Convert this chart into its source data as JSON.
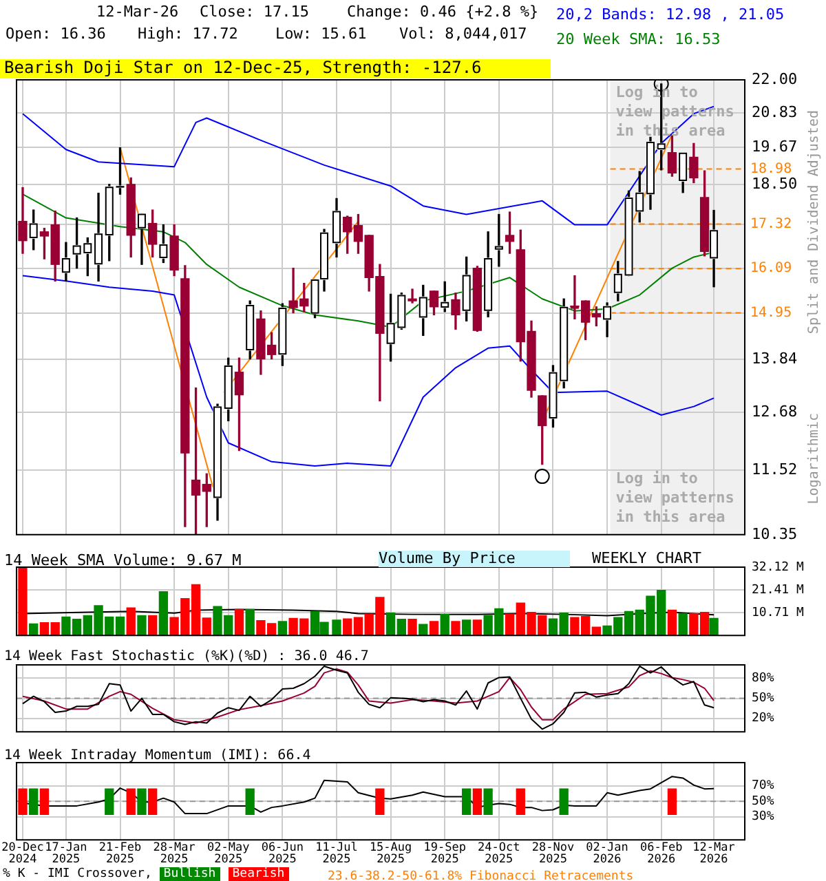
{
  "chart_data": [
    {
      "type": "candlestick",
      "title": "Bearish Doji Star on 12-Dec-25, Strength: -127.6",
      "ylabel": "Split and Dividend Adjusted",
      "log": true,
      "grid": true,
      "tick_labels": "y",
      "legend": "top right",
      "xlim": [
        "2024-12-16",
        "2026-04-01"
      ],
      "xticks": [
        {
          "value": "2024-12-20",
          "label": null
        },
        {
          "value": "2025-01-17",
          "label": null
        },
        {
          "value": "2025-02-21",
          "label": null
        },
        {
          "value": "2025-03-28",
          "label": null
        },
        {
          "value": "2025-05-02",
          "label": null
        },
        {
          "value": "2025-06-06",
          "label": null
        },
        {
          "value": "2025-07-11",
          "label": null
        },
        {
          "value": "2025-08-15",
          "label": null
        },
        {
          "value": "2025-09-19",
          "label": null
        },
        {
          "value": "2025-10-24",
          "label": null
        },
        {
          "value": "2025-11-28",
          "label": null
        },
        {
          "value": "2026-01-02",
          "label": null
        },
        {
          "value": "2026-02-06",
          "label": null
        },
        {
          "value": "2026-03-12",
          "label": null
        }
      ],
      "ylim": [
        10.35,
        22.0
      ],
      "yticks": [
        {
          "value": 22.0,
          "label": "22.00"
        },
        20.83,
        19.67,
        {
          "value": 18.5,
          "label": "18.50"
        },
        {
          "value": 17.32,
          "label": null
        },
        {
          "value": 16.09,
          "label": null
        },
        {
          "value": 14.95,
          "label": null
        },
        13.84,
        12.68,
        11.52,
        10.35
      ],
      "x": [
        "2024-12-20",
        "2024-12-27",
        "2025-01-03",
        "2025-01-10",
        "2025-01-17",
        "2025-01-24",
        "2025-01-31",
        "2025-02-07",
        "2025-02-14",
        "2025-02-21",
        "2025-02-28",
        "2025-03-07",
        "2025-03-14",
        "2025-03-21",
        "2025-03-28",
        "2025-04-04",
        "2025-04-11",
        "2025-04-18",
        "2025-04-25",
        "2025-05-02",
        "2025-05-09",
        "2025-05-16",
        "2025-05-23",
        "2025-05-30",
        "2025-06-06",
        "2025-06-13",
        "2025-06-20",
        "2025-06-27",
        "2025-07-03",
        "2025-07-11",
        "2025-07-18",
        "2025-07-25",
        "2025-08-01",
        "2025-08-08",
        "2025-08-15",
        "2025-08-22",
        "2025-08-29",
        "2025-09-05",
        "2025-09-12",
        "2025-09-19",
        "2025-09-26",
        "2025-10-03",
        "2025-10-10",
        "2025-10-17",
        "2025-10-24",
        "2025-10-31",
        "2025-11-07",
        "2025-11-14",
        "2025-11-21",
        "2025-11-28",
        "2025-12-05",
        "2025-12-12",
        "2025-12-19",
        "2025-12-26",
        "2026-01-02",
        "2026-01-09",
        "2026-01-16",
        "2026-01-23",
        "2026-01-30",
        "2026-02-06",
        "2026-02-13",
        "2026-02-20",
        "2026-02-27",
        "2026-03-06",
        "2026-03-12"
      ],
      "ohlc": [
        [
          17.4,
          18.4,
          16.5,
          16.85
        ],
        [
          16.92,
          17.73,
          16.6,
          17.34
        ],
        [
          17.1,
          17.2,
          16.35,
          16.98
        ],
        [
          17.3,
          17.7,
          15.76,
          16.2
        ],
        [
          15.98,
          16.8,
          15.76,
          16.37
        ],
        [
          16.47,
          17.5,
          16.1,
          16.72
        ],
        [
          16.5,
          16.93,
          15.9,
          16.78
        ],
        [
          16.2,
          18.23,
          15.76,
          17.05
        ],
        [
          17.0,
          18.5,
          16.3,
          18.43
        ],
        [
          18.4,
          19.66,
          18.2,
          18.45
        ],
        [
          18.5,
          18.7,
          16.4,
          17.0
        ],
        [
          17.2,
          17.62,
          16.2,
          17.62
        ],
        [
          17.34,
          17.73,
          16.4,
          16.75
        ],
        [
          16.37,
          17.3,
          16.25,
          16.75
        ],
        [
          16.98,
          17.3,
          15.9,
          16.05
        ],
        [
          15.82,
          16.17,
          10.49,
          11.85
        ],
        [
          11.33,
          13.2,
          10.35,
          11.05
        ],
        [
          11.25,
          11.45,
          10.49,
          11.12
        ],
        [
          11.0,
          12.85,
          10.6,
          12.8
        ],
        [
          12.75,
          13.87,
          12.5,
          13.7
        ],
        [
          13.55,
          13.87,
          11.9,
          13.05
        ],
        [
          14.05,
          15.25,
          13.85,
          15.15
        ],
        [
          14.8,
          15.0,
          13.5,
          13.85
        ],
        [
          14.17,
          14.47,
          13.85,
          13.95
        ],
        [
          13.95,
          15.18,
          13.7,
          15.08
        ],
        [
          15.25,
          16.1,
          14.95,
          15.08
        ],
        [
          15.3,
          15.7,
          14.98,
          15.12
        ],
        [
          14.93,
          15.8,
          14.83,
          15.8
        ],
        [
          15.8,
          17.17,
          15.5,
          17.08
        ],
        [
          16.78,
          18.07,
          16.4,
          17.7
        ],
        [
          17.52,
          17.55,
          16.5,
          17.1
        ],
        [
          17.28,
          17.6,
          16.5,
          16.83
        ],
        [
          17.0,
          17.0,
          15.5,
          15.85
        ],
        [
          15.88,
          16.2,
          12.92,
          14.45
        ],
        [
          14.2,
          15.42,
          13.8,
          14.7
        ],
        [
          14.58,
          15.45,
          14.55,
          15.4
        ],
        [
          15.3,
          15.55,
          15.2,
          15.25
        ],
        [
          14.83,
          15.65,
          14.4,
          15.35
        ],
        [
          15.5,
          15.5,
          14.9,
          15.1
        ],
        [
          15.08,
          15.74,
          14.98,
          15.22
        ],
        [
          15.28,
          15.45,
          14.55,
          14.9
        ],
        [
          15.0,
          16.4,
          14.75,
          15.92
        ],
        [
          16.1,
          16.15,
          14.5,
          14.52
        ],
        [
          15.0,
          17.1,
          14.85,
          16.37
        ],
        [
          16.6,
          17.6,
          16.15,
          16.7
        ],
        [
          17.0,
          17.67,
          16.5,
          16.83
        ],
        [
          16.6,
          17.15,
          13.8,
          14.25
        ],
        [
          14.5,
          14.75,
          13.0,
          13.15
        ],
        [
          13.03,
          13.03,
          11.63,
          12.4
        ],
        [
          12.55,
          13.7,
          12.37,
          13.55
        ],
        [
          13.35,
          15.3,
          13.2,
          15.1
        ],
        [
          15.12,
          15.9,
          14.8,
          15.1
        ],
        [
          15.25,
          15.25,
          14.3,
          14.72
        ],
        [
          14.93,
          15.1,
          14.63,
          14.85
        ],
        [
          14.78,
          15.2,
          14.37,
          15.12
        ],
        [
          15.45,
          16.28,
          15.25,
          15.95
        ],
        [
          15.9,
          18.3,
          15.9,
          18.1
        ],
        [
          17.68,
          18.9,
          17.38,
          18.25
        ],
        [
          18.2,
          20.0,
          17.75,
          19.85
        ],
        [
          19.6,
          21.85,
          18.95,
          19.8
        ],
        [
          19.5,
          20.05,
          18.75,
          18.85
        ],
        [
          18.6,
          19.5,
          18.25,
          19.5
        ],
        [
          19.35,
          19.8,
          18.55,
          18.7
        ],
        [
          18.1,
          18.92,
          16.43,
          16.55
        ],
        [
          16.36,
          17.72,
          15.61,
          17.15
        ]
      ],
      "colors": [
        "#990033",
        "#ffffff",
        "#990033",
        "#990033",
        "#ffffff",
        "#ffffff",
        "#ffffff",
        "#ffffff",
        "#ffffff",
        "#ffffff",
        "#990033",
        "#ffffff",
        "#990033",
        "#ffffff",
        "#990033",
        "#990033",
        "#990033",
        "#990033",
        "#ffffff",
        "#ffffff",
        "#990033",
        "#ffffff",
        "#990033",
        "#990033",
        "#ffffff",
        "#990033",
        "#990033",
        "#ffffff",
        "#ffffff",
        "#ffffff",
        "#990033",
        "#990033",
        "#990033",
        "#990033",
        "#ffffff",
        "#ffffff",
        "#990033",
        "#ffffff",
        "#990033",
        "#ffffff",
        "#990033",
        "#ffffff",
        "#990033",
        "#ffffff",
        "#ffffff",
        "#990033",
        "#990033",
        "#990033",
        "#990033",
        "#ffffff",
        "#ffffff",
        "#990033",
        "#990033",
        "#990033",
        "#ffffff",
        "#ffffff",
        "#ffffff",
        "#ffffff",
        "#ffffff",
        "#ffffff",
        "#990033",
        "#ffffff",
        "#990033",
        "#990033",
        "#ffffff"
      ],
      "series": [
        {
          "type": "line",
          "name": "20,2 Bands: 12.98 , 21.05",
          "color": "#0000ff",
          "x": [
            "2024-12-20",
            "2025-01-17",
            "2025-02-07",
            "2025-03-28",
            "2025-04-11",
            "2025-04-18",
            "2025-05-23",
            "2025-07-03",
            "2025-08-15",
            "2025-09-05",
            "2025-10-03",
            "2025-11-21",
            "2025-12-12",
            "2026-01-02",
            "2026-01-16",
            "2026-02-06",
            "2026-02-27",
            "2026-03-12"
          ],
          "values": [
            20.8,
            19.6,
            19.2,
            19.05,
            20.5,
            20.65,
            19.9,
            19.1,
            18.45,
            17.85,
            17.6,
            18.0,
            17.3,
            17.3,
            18.26,
            19.8,
            20.8,
            21.05
          ]
        },
        {
          "type": "line",
          "color": "#0000ff",
          "x": [
            "2024-12-20",
            "2025-01-17",
            "2025-02-14",
            "2025-03-14",
            "2025-03-28",
            "2025-04-18",
            "2025-05-02",
            "2025-05-30",
            "2025-06-27",
            "2025-07-18",
            "2025-08-15",
            "2025-09-05",
            "2025-09-26",
            "2025-10-17",
            "2025-10-31",
            "2025-11-14",
            "2025-11-28",
            "2026-01-02",
            "2026-02-06",
            "2026-02-27",
            "2026-03-12"
          ],
          "values": [
            15.9,
            15.76,
            15.6,
            15.5,
            15.4,
            13.0,
            12.05,
            11.68,
            11.6,
            11.65,
            11.6,
            13.0,
            13.65,
            14.1,
            14.15,
            13.6,
            13.1,
            13.13,
            12.62,
            12.8,
            12.98
          ]
        },
        {
          "type": "line",
          "name": "20 Week SMA: 16.53",
          "color": "#008000",
          "x": [
            "2024-12-20",
            "2025-01-17",
            "2025-02-21",
            "2025-03-21",
            "2025-04-04",
            "2025-04-18",
            "2025-05-09",
            "2025-06-06",
            "2025-06-27",
            "2025-07-25",
            "2025-08-15",
            "2025-09-05",
            "2025-10-03",
            "2025-10-31",
            "2025-11-21",
            "2025-12-12",
            "2026-01-02",
            "2026-01-23",
            "2026-02-13",
            "2026-02-27",
            "2026-03-12"
          ],
          "values": [
            18.2,
            17.5,
            17.25,
            17.1,
            16.8,
            16.2,
            15.6,
            15.13,
            14.9,
            14.75,
            14.6,
            15.25,
            15.5,
            15.85,
            15.3,
            15.0,
            15.05,
            15.4,
            16.1,
            16.4,
            16.53
          ]
        },
        {
          "type": "line",
          "color": "#ff8000",
          "x": [
            "2025-02-21",
            "2025-04-22"
          ],
          "values": [
            19.66,
            11.2
          ]
        },
        {
          "type": "line",
          "color": "#ff8000",
          "x": [
            "2025-04-29",
            "2025-07-25"
          ],
          "values": [
            13.1,
            17.4
          ]
        },
        {
          "type": "line",
          "color": "#ff8000",
          "x": [
            "2025-11-24",
            "2026-02-13"
          ],
          "values": [
            12.7,
            20.1
          ]
        },
        {
          "type": "scatter",
          "marker": "circle",
          "color": "#000000",
          "x": [
            "2025-11-21",
            "2026-02-06"
          ],
          "values": [
            11.4,
            21.85
          ]
        }
      ],
      "ref_lines": [
        {
          "axis": "y",
          "value": 18.98,
          "label": "18.98",
          "color": "#ff8000",
          "line_style": "dashed"
        },
        {
          "axis": "y",
          "value": 17.32,
          "label": "17.32",
          "color": "#ff8000",
          "line_style": "dashed"
        },
        {
          "axis": "y",
          "value": 16.09,
          "label": "16.09",
          "color": "#ff8000",
          "line_style": "dashed"
        },
        {
          "axis": "y",
          "value": 14.95,
          "label": "14.95",
          "color": "#ff8000",
          "line_style": "dashed"
        }
      ],
      "bands": [
        {
          "axis": "x",
          "from": "2026-01-04",
          "to": "2026-04-01",
          "label": "Log in to view patterns in this area",
          "color": "#f0f0f0"
        }
      ],
      "annotations": [
        "12-Mar-26",
        "Close: 17.15",
        "Change: 0.46 {+2.8 %}",
        "Open: 16.36",
        "High: 17.72",
        "Low: 15.61",
        "Vol: 8,044,017",
        "Volume By Price",
        "WEEKLY CHART",
        "Log in to view patterns in this area",
        "Logarithmic"
      ]
    },
    {
      "type": "bar",
      "title": "14 Week SMA Volume: 9.67 M",
      "grid": true,
      "tick_labels": "y",
      "xlim": [
        "2024-12-16",
        "2026-04-01"
      ],
      "xticks": [
        {
          "value": "2024-12-20",
          "label": null
        },
        {
          "value": "2025-01-17",
          "label": null
        },
        {
          "value": "2025-02-21",
          "label": null
        },
        {
          "value": "2025-03-28",
          "label": null
        },
        {
          "value": "2025-05-02",
          "label": null
        },
        {
          "value": "2025-06-06",
          "label": null
        },
        {
          "value": "2025-07-11",
          "label": null
        },
        {
          "value": "2025-08-15",
          "label": null
        },
        {
          "value": "2025-09-19",
          "label": null
        },
        {
          "value": "2025-10-24",
          "label": null
        },
        {
          "value": "2025-11-28",
          "label": null
        },
        {
          "value": "2026-01-02",
          "label": null
        },
        {
          "value": "2026-02-06",
          "label": null
        },
        {
          "value": "2026-03-12",
          "label": null
        }
      ],
      "ylim": [
        0,
        32.12
      ],
      "yticks": [
        {
          "value": 10.71,
          "label": "10.71 M"
        },
        {
          "value": 21.41,
          "label": "21.41 M"
        },
        {
          "value": 32.12,
          "label": "32.12 M"
        }
      ],
      "x": [
        "2024-12-20",
        "2024-12-27",
        "2025-01-03",
        "2025-01-10",
        "2025-01-17",
        "2025-01-24",
        "2025-01-31",
        "2025-02-07",
        "2025-02-14",
        "2025-02-21",
        "2025-02-28",
        "2025-03-07",
        "2025-03-14",
        "2025-03-21",
        "2025-03-28",
        "2025-04-04",
        "2025-04-11",
        "2025-04-18",
        "2025-04-25",
        "2025-05-02",
        "2025-05-09",
        "2025-05-16",
        "2025-05-23",
        "2025-05-30",
        "2025-06-06",
        "2025-06-13",
        "2025-06-20",
        "2025-06-27",
        "2025-07-03",
        "2025-07-11",
        "2025-07-18",
        "2025-07-25",
        "2025-08-01",
        "2025-08-08",
        "2025-08-15",
        "2025-08-22",
        "2025-08-29",
        "2025-09-05",
        "2025-09-12",
        "2025-09-19",
        "2025-09-26",
        "2025-10-03",
        "2025-10-10",
        "2025-10-17",
        "2025-10-24",
        "2025-10-31",
        "2025-11-07",
        "2025-11-14",
        "2025-11-21",
        "2025-11-28",
        "2025-12-05",
        "2025-12-12",
        "2025-12-19",
        "2025-12-26",
        "2026-01-02",
        "2026-01-09",
        "2026-01-16",
        "2026-01-23",
        "2026-01-30",
        "2026-02-06",
        "2026-02-13",
        "2026-02-20",
        "2026-02-27",
        "2026-03-06",
        "2026-03-12"
      ],
      "series": [
        {
          "values": [
            32.12,
            5.4,
            6.0,
            6.0,
            8.7,
            7.6,
            9.3,
            14.0,
            8.7,
            8.7,
            13.0,
            9.3,
            9.3,
            20.6,
            8.4,
            17.3,
            23.9,
            8.2,
            13.6,
            9.3,
            12.2,
            12.2,
            7.0,
            5.6,
            6.6,
            8.0,
            7.8,
            11.3,
            6.2,
            7.2,
            7.8,
            8.4,
            9.9,
            17.9,
            10.5,
            7.6,
            7.6,
            5.2,
            6.6,
            9.9,
            6.6,
            7.2,
            7.2,
            9.3,
            12.6,
            9.9,
            15.2,
            10.9,
            9.3,
            7.8,
            10.5,
            8.4,
            8.9,
            3.9,
            4.5,
            8.4,
            11.3,
            11.9,
            18.5,
            21.2,
            11.9,
            10.3,
            10.3,
            10.9,
            8.04
          ],
          "colors": [
            "#ff0000",
            "#008800",
            "#ff0000",
            "#ff0000",
            "#008800",
            "#008800",
            "#008800",
            "#008800",
            "#008800",
            "#008800",
            "#ff0000",
            "#008800",
            "#ff0000",
            "#008800",
            "#ff0000",
            "#ff0000",
            "#ff0000",
            "#ff0000",
            "#008800",
            "#008800",
            "#ff0000",
            "#008800",
            "#ff0000",
            "#ff0000",
            "#008800",
            "#ff0000",
            "#ff0000",
            "#008800",
            "#008800",
            "#008800",
            "#ff0000",
            "#ff0000",
            "#ff0000",
            "#ff0000",
            "#008800",
            "#008800",
            "#ff0000",
            "#008800",
            "#ff0000",
            "#008800",
            "#ff0000",
            "#008800",
            "#ff0000",
            "#008800",
            "#008800",
            "#ff0000",
            "#ff0000",
            "#ff0000",
            "#ff0000",
            "#008800",
            "#008800",
            "#ff0000",
            "#ff0000",
            "#ff0000",
            "#008800",
            "#008800",
            "#008800",
            "#008800",
            "#008800",
            "#008800",
            "#ff0000",
            "#008800",
            "#ff0000",
            "#ff0000",
            "#008800"
          ]
        },
        {
          "type": "line",
          "color": "#000000",
          "x": [
            "2024-12-20",
            "2025-01-31",
            "2025-02-28",
            "2025-03-28",
            "2025-04-11",
            "2025-05-09",
            "2025-06-13",
            "2025-07-11",
            "2025-07-25",
            "2025-08-29",
            "2025-10-10",
            "2025-11-07",
            "2025-12-05",
            "2026-01-02",
            "2026-01-30",
            "2026-02-13",
            "2026-03-12"
          ],
          "values": [
            10.3,
            10.9,
            11.3,
            10.5,
            11.9,
            12.2,
            11.9,
            11.3,
            10.3,
            9.9,
            9.9,
            10.3,
            9.9,
            9.3,
            10.5,
            10.9,
            9.67
          ]
        }
      ]
    },
    {
      "type": "line",
      "title": "14 Week Fast Stochastic (%K)(%D) : 36.0 46.7",
      "grid": true,
      "tick_labels": "y",
      "xlim": [
        "2024-12-16",
        "2026-04-01"
      ],
      "xticks": [
        {
          "value": "2024-12-20",
          "label": null
        },
        {
          "value": "2025-01-17",
          "label": null
        },
        {
          "value": "2025-02-21",
          "label": null
        },
        {
          "value": "2025-03-28",
          "label": null
        },
        {
          "value": "2025-05-02",
          "label": null
        },
        {
          "value": "2025-06-06",
          "label": null
        },
        {
          "value": "2025-07-11",
          "label": null
        },
        {
          "value": "2025-08-15",
          "label": null
        },
        {
          "value": "2025-09-19",
          "label": null
        },
        {
          "value": "2025-10-24",
          "label": null
        },
        {
          "value": "2025-11-28",
          "label": null
        },
        {
          "value": "2026-01-02",
          "label": null
        },
        {
          "value": "2026-02-06",
          "label": null
        },
        {
          "value": "2026-03-12",
          "label": null
        }
      ],
      "ylim": [
        0,
        100
      ],
      "yticks": [
        {
          "value": 20,
          "label": "20%"
        },
        {
          "value": 50,
          "label": "50%"
        },
        {
          "value": 80,
          "label": "80%"
        }
      ],
      "ref_lines": [
        {
          "axis": "y",
          "value": 50,
          "color": "#999999",
          "line_style": "dashed"
        }
      ],
      "series": [
        {
          "color": "#000000",
          "x": [
            "2024-12-20",
            "2024-12-27",
            "2025-01-03",
            "2025-01-10",
            "2025-01-17",
            "2025-01-24",
            "2025-01-31",
            "2025-02-07",
            "2025-02-14",
            "2025-02-21",
            "2025-02-28",
            "2025-03-07",
            "2025-03-14",
            "2025-03-21",
            "2025-03-28",
            "2025-04-04",
            "2025-04-11",
            "2025-04-18",
            "2025-04-25",
            "2025-05-02",
            "2025-05-09",
            "2025-05-16",
            "2025-05-23",
            "2025-05-30",
            "2025-06-06",
            "2025-06-13",
            "2025-06-20",
            "2025-06-27",
            "2025-07-03",
            "2025-07-11",
            "2025-07-18",
            "2025-07-25",
            "2025-08-01",
            "2025-08-08",
            "2025-08-15",
            "2025-08-22",
            "2025-08-29",
            "2025-09-05",
            "2025-09-12",
            "2025-09-19",
            "2025-09-26",
            "2025-10-03",
            "2025-10-10",
            "2025-10-17",
            "2025-10-24",
            "2025-10-31",
            "2025-11-07",
            "2025-11-14",
            "2025-11-21",
            "2025-11-28",
            "2025-12-05",
            "2025-12-12",
            "2025-12-19",
            "2025-12-26",
            "2026-01-02",
            "2026-01-09",
            "2026-01-16",
            "2026-01-23",
            "2026-01-30",
            "2026-02-06",
            "2026-02-13",
            "2026-02-20",
            "2026-02-27",
            "2026-03-06",
            "2026-03-12"
          ],
          "values": [
            42,
            53,
            45,
            29,
            31,
            38,
            38,
            41,
            72,
            70,
            31,
            50,
            26,
            26,
            15,
            11,
            15,
            13,
            28,
            36,
            32,
            53,
            38,
            48,
            64,
            65,
            72,
            83,
            98,
            92,
            88,
            59,
            41,
            36,
            51,
            50,
            49,
            45,
            48,
            46,
            40,
            61,
            34,
            73,
            81,
            82,
            50,
            19,
            4,
            12,
            29,
            58,
            59,
            52,
            55,
            57,
            72,
            98,
            88,
            97,
            81,
            70,
            75,
            40,
            36.0
          ]
        },
        {
          "color": "#990033",
          "x": [
            "2024-12-20",
            "2025-01-03",
            "2025-01-17",
            "2025-01-31",
            "2025-02-14",
            "2025-02-21",
            "2025-02-28",
            "2025-03-14",
            "2025-03-28",
            "2025-04-11",
            "2025-04-25",
            "2025-05-09",
            "2025-05-23",
            "2025-06-06",
            "2025-06-20",
            "2025-06-27",
            "2025-07-03",
            "2025-07-11",
            "2025-07-18",
            "2025-07-25",
            "2025-08-01",
            "2025-08-15",
            "2025-08-29",
            "2025-09-12",
            "2025-09-26",
            "2025-10-10",
            "2025-10-24",
            "2025-10-31",
            "2025-11-07",
            "2025-11-14",
            "2025-11-21",
            "2025-11-28",
            "2025-12-05",
            "2025-12-19",
            "2026-01-02",
            "2026-01-16",
            "2026-01-23",
            "2026-01-30",
            "2026-02-06",
            "2026-02-13",
            "2026-02-20",
            "2026-02-27",
            "2026-03-06",
            "2026-03-12"
          ],
          "values": [
            53,
            46,
            34,
            34,
            53,
            60,
            56,
            35,
            18,
            13,
            22,
            33,
            39,
            46,
            58,
            68,
            88,
            94,
            89,
            70,
            46,
            43,
            48,
            46,
            43,
            46,
            60,
            81,
            63,
            37,
            18,
            18,
            34,
            56,
            57,
            67,
            84,
            91,
            87,
            81,
            78,
            74,
            65,
            46.7
          ]
        }
      ]
    },
    {
      "type": "line",
      "title": "14 Week Intraday Momentum (IMI): 66.4",
      "grid": true,
      "legend": "bottom left",
      "legend_title": "% K - IMI Crossover,",
      "xlim": [
        "2024-12-16",
        "2026-04-01"
      ],
      "xticks": [
        {
          "value": "2024-12-20",
          "label": "20-Dec 2024"
        },
        {
          "value": "2025-01-17",
          "label": "17-Jan 2025"
        },
        {
          "value": "2025-02-21",
          "label": "21-Feb 2025"
        },
        {
          "value": "2025-03-28",
          "label": "28-Mar 2025"
        },
        {
          "value": "2025-05-02",
          "label": "02-May 2025"
        },
        {
          "value": "2025-06-06",
          "label": "06-Jun 2025"
        },
        {
          "value": "2025-07-11",
          "label": "11-Jul 2025"
        },
        {
          "value": "2025-08-15",
          "label": "15-Aug 2025"
        },
        {
          "value": "2025-09-19",
          "label": "19-Sep 2025"
        },
        {
          "value": "2025-10-24",
          "label": "24-Oct 2025"
        },
        {
          "value": "2025-11-28",
          "label": "28-Nov 2025"
        },
        {
          "value": "2026-01-02",
          "label": "02-Jan 2026"
        },
        {
          "value": "2026-02-06",
          "label": "06-Feb 2026"
        },
        {
          "value": "2026-03-12",
          "label": "12-Mar 2026"
        }
      ],
      "ylim": [
        0,
        100
      ],
      "yticks": [
        {
          "value": 30,
          "label": "30%"
        },
        {
          "value": 50,
          "label": "50%"
        },
        {
          "value": 70,
          "label": "70%"
        }
      ],
      "ref_lines": [
        {
          "axis": "y",
          "value": 50,
          "color": "#999999",
          "line_style": "dashed"
        }
      ],
      "series": [
        {
          "color": "#000000",
          "x": [
            "2024-12-20",
            "2025-01-03",
            "2025-01-24",
            "2025-02-07",
            "2025-02-14",
            "2025-02-21",
            "2025-02-28",
            "2025-03-07",
            "2025-03-14",
            "2025-03-21",
            "2025-03-28",
            "2025-04-04",
            "2025-04-18",
            "2025-05-02",
            "2025-05-16",
            "2025-05-23",
            "2025-05-30",
            "2025-06-06",
            "2025-06-20",
            "2025-06-27",
            "2025-07-03",
            "2025-07-18",
            "2025-07-25",
            "2025-08-08",
            "2025-08-15",
            "2025-08-29",
            "2025-09-05",
            "2025-09-19",
            "2025-10-03",
            "2025-10-10",
            "2025-10-17",
            "2025-10-24",
            "2025-10-31",
            "2025-11-07",
            "2025-11-14",
            "2025-11-21",
            "2025-11-28",
            "2025-12-05",
            "2025-12-12",
            "2025-12-26",
            "2026-01-02",
            "2026-01-09",
            "2026-01-23",
            "2026-01-30",
            "2026-02-06",
            "2026-02-13",
            "2026-02-20",
            "2026-02-27",
            "2026-03-06",
            "2026-03-12"
          ],
          "values": [
            48,
            44,
            44,
            49,
            53,
            67,
            61,
            49,
            49,
            54,
            49,
            34,
            34,
            44,
            44,
            36,
            42,
            44,
            49,
            54,
            77,
            75,
            61,
            54,
            53,
            58,
            62,
            56,
            56,
            42,
            45,
            47,
            46,
            42,
            42,
            38,
            39,
            45,
            44,
            44,
            61,
            58,
            64,
            66,
            74,
            82,
            80,
            71,
            66,
            66.4
          ]
        },
        {
          "type": "bar",
          "name": "Bullish",
          "color": "#008800",
          "x": [
            "2024-12-27",
            "2025-02-14",
            "2025-03-07",
            "2025-05-16",
            "2025-10-03",
            "2025-10-17",
            "2025-12-05"
          ],
          "base": [
            33,
            33,
            33,
            33,
            33,
            33,
            33
          ],
          "values": [
            33,
            33,
            33,
            33,
            33,
            33,
            33
          ]
        },
        {
          "type": "bar",
          "name": "Bearish",
          "color": "#ff0000",
          "x": [
            "2024-12-20",
            "2025-01-03",
            "2025-02-28",
            "2025-03-14",
            "2025-08-08",
            "2025-10-10",
            "2025-11-07",
            "2026-02-13"
          ],
          "base": [
            33,
            33,
            33,
            33,
            33,
            33,
            33,
            33
          ],
          "values": [
            33,
            33,
            33,
            33,
            33,
            33,
            33,
            33
          ]
        }
      ],
      "annotations": [
        "23.6-38.2-50-61.8% Fibonacci Retracements"
      ]
    }
  ]
}
